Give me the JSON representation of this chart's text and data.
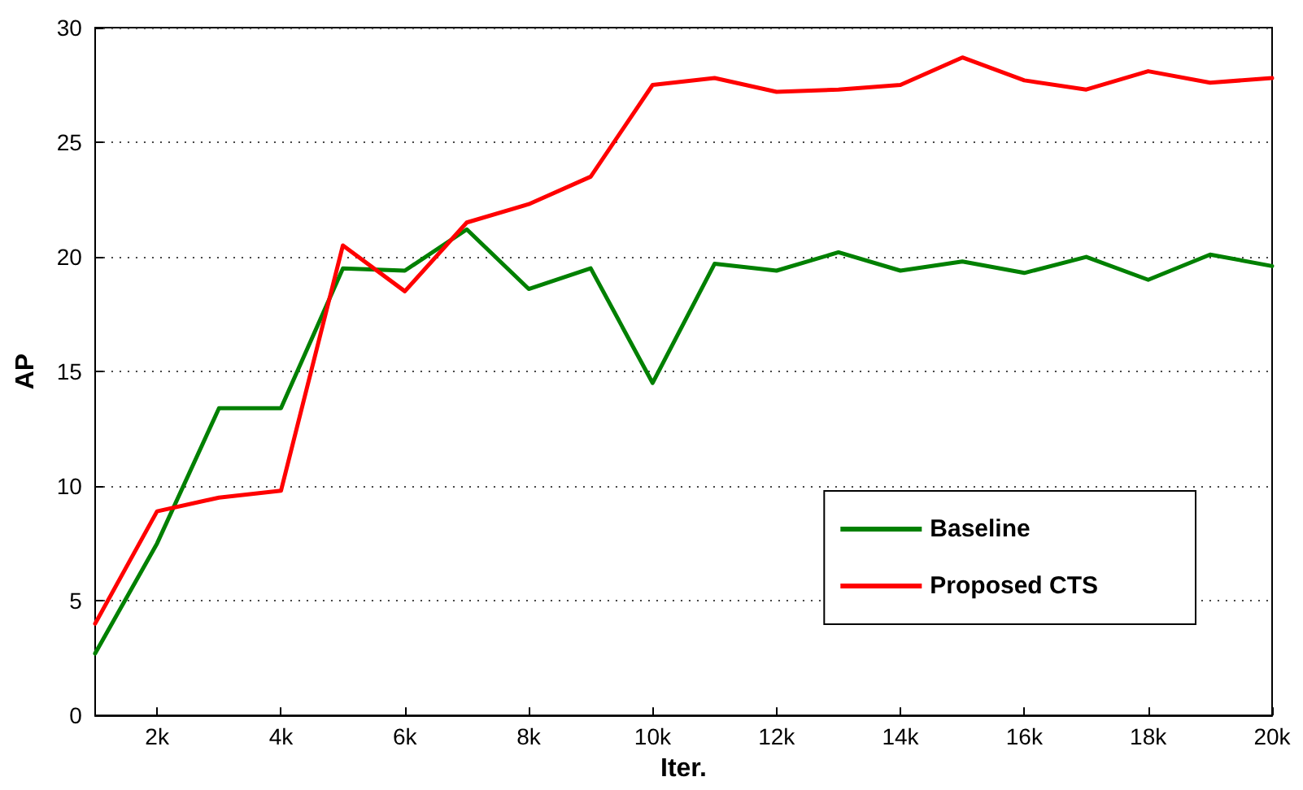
{
  "chart_data": {
    "type": "line",
    "xlabel": "Iter.",
    "ylabel": "AP",
    "x": [
      1000,
      2000,
      3000,
      4000,
      5000,
      6000,
      7000,
      8000,
      9000,
      10000,
      11000,
      12000,
      13000,
      14000,
      15000,
      16000,
      17000,
      18000,
      19000,
      20000
    ],
    "series": [
      {
        "name": "Baseline",
        "color": "#008000",
        "values": [
          2.7,
          7.5,
          13.4,
          13.4,
          19.5,
          19.4,
          21.2,
          18.6,
          19.5,
          14.5,
          19.7,
          19.4,
          20.2,
          19.4,
          19.8,
          19.3,
          20.0,
          19.0,
          20.1,
          19.6
        ]
      },
      {
        "name": "Proposed CTS",
        "color": "#ff0000",
        "values": [
          4.0,
          8.9,
          9.5,
          9.8,
          20.5,
          18.5,
          21.5,
          22.3,
          23.5,
          27.5,
          27.8,
          27.2,
          27.3,
          27.5,
          28.7,
          27.7,
          27.3,
          28.1,
          27.6,
          27.8
        ]
      }
    ],
    "xlim": [
      1000,
      20000
    ],
    "xticks": [
      {
        "value": 2000,
        "label": "2k"
      },
      {
        "value": 4000,
        "label": "4k"
      },
      {
        "value": 6000,
        "label": "6k"
      },
      {
        "value": 8000,
        "label": "8k"
      },
      {
        "value": 10000,
        "label": "10k"
      },
      {
        "value": 12000,
        "label": "12k"
      },
      {
        "value": 14000,
        "label": "14k"
      },
      {
        "value": 16000,
        "label": "16k"
      },
      {
        "value": 18000,
        "label": "18k"
      },
      {
        "value": 20000,
        "label": "20k"
      }
    ],
    "ylim": [
      0,
      30
    ],
    "yticks": [
      0,
      5,
      10,
      15,
      20,
      25,
      30
    ],
    "grid": "y",
    "legend": "bottom right",
    "marker": "none",
    "line_style": "solid"
  }
}
